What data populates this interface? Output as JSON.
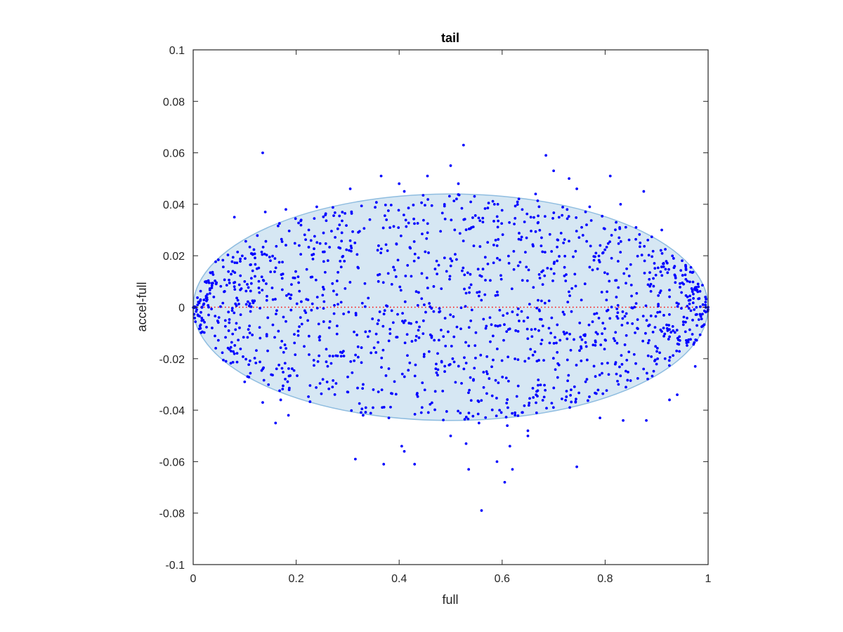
{
  "chart_data": {
    "type": "scatter",
    "title": "tail",
    "xlabel": "full",
    "ylabel": "accel-full",
    "xlim": [
      0,
      1
    ],
    "ylim": [
      -0.1,
      0.1
    ],
    "xticks": [
      {
        "value": 0,
        "label": "0"
      },
      {
        "value": 0.2,
        "label": "0.2"
      },
      {
        "value": 0.4,
        "label": "0.4"
      },
      {
        "value": 0.6,
        "label": "0.6"
      },
      {
        "value": 0.8,
        "label": "0.8"
      },
      {
        "value": 1,
        "label": "1"
      }
    ],
    "yticks": [
      {
        "value": -0.1,
        "label": "-0.1"
      },
      {
        "value": -0.08,
        "label": "-0.08"
      },
      {
        "value": -0.06,
        "label": "-0.06"
      },
      {
        "value": -0.04,
        "label": "-0.04"
      },
      {
        "value": -0.02,
        "label": "-0.02"
      },
      {
        "value": 0,
        "label": "0"
      },
      {
        "value": 0.02,
        "label": "0.02"
      },
      {
        "value": 0.04,
        "label": "0.04"
      },
      {
        "value": 0.06,
        "label": "0.06"
      },
      {
        "value": 0.08,
        "label": "0.08"
      },
      {
        "value": 0.1,
        "label": "0.1"
      }
    ],
    "grid": false,
    "envelope": {
      "shape": "ellipse",
      "x_center": 0.5,
      "x_halfwidth": 0.5,
      "y_halfheight": 0.044,
      "fill_color": "#d6e7f3",
      "edge_color": "#8fbde0"
    },
    "reference_line": {
      "y": 0,
      "style": "dotted",
      "color": "#ff0000"
    },
    "point_color": "#0000ff",
    "point_count_approx": 1500,
    "points": [
      [
        0.135,
        0.06
      ],
      [
        0.525,
        0.063
      ],
      [
        0.685,
        0.059
      ],
      [
        0.7,
        0.053
      ],
      [
        0.365,
        0.051
      ],
      [
        0.455,
        0.051
      ],
      [
        0.5,
        0.055
      ],
      [
        0.73,
        0.05
      ],
      [
        0.81,
        0.051
      ],
      [
        0.4,
        0.048
      ],
      [
        0.515,
        0.048
      ],
      [
        0.745,
        0.046
      ],
      [
        0.875,
        0.045
      ],
      [
        0.305,
        0.046
      ],
      [
        0.665,
        0.044
      ],
      [
        0.41,
        0.045
      ],
      [
        0.585,
        0.04
      ],
      [
        0.24,
        0.039
      ],
      [
        0.18,
        0.038
      ],
      [
        0.77,
        0.039
      ],
      [
        0.83,
        0.04
      ],
      [
        0.86,
        0.031
      ],
      [
        0.91,
        0.03
      ],
      [
        0.14,
        0.037
      ],
      [
        0.08,
        0.035
      ],
      [
        0.135,
        -0.037
      ],
      [
        0.16,
        -0.045
      ],
      [
        0.185,
        -0.042
      ],
      [
        0.17,
        -0.036
      ],
      [
        0.1,
        -0.029
      ],
      [
        0.925,
        -0.036
      ],
      [
        0.94,
        -0.034
      ],
      [
        0.88,
        -0.044
      ],
      [
        0.835,
        -0.044
      ],
      [
        0.79,
        -0.043
      ],
      [
        0.65,
        -0.048
      ],
      [
        0.61,
        -0.046
      ],
      [
        0.5,
        -0.05
      ],
      [
        0.53,
        -0.053
      ],
      [
        0.405,
        -0.054
      ],
      [
        0.41,
        -0.056
      ],
      [
        0.315,
        -0.059
      ],
      [
        0.37,
        -0.061
      ],
      [
        0.43,
        -0.061
      ],
      [
        0.535,
        -0.063
      ],
      [
        0.59,
        -0.06
      ],
      [
        0.605,
        -0.068
      ],
      [
        0.62,
        -0.063
      ],
      [
        0.615,
        -0.054
      ],
      [
        0.65,
        -0.05
      ],
      [
        0.745,
        -0.062
      ],
      [
        0.56,
        -0.079
      ],
      [
        0.595,
        -0.04
      ],
      [
        0.625,
        -0.041
      ],
      [
        0.555,
        -0.045
      ],
      [
        0.33,
        -0.042
      ],
      [
        0.38,
        -0.043
      ],
      [
        0.975,
        -0.023
      ],
      [
        0.99,
        0.001
      ],
      [
        1.0,
        0.0
      ],
      [
        0.005,
        0.0
      ],
      [
        0.01,
        0.002
      ],
      [
        0.015,
        -0.002
      ],
      [
        0.02,
        0.001
      ],
      [
        0.03,
        -0.003
      ],
      [
        0.04,
        0.004
      ],
      [
        0.05,
        -0.004
      ],
      [
        0.06,
        0.006
      ],
      [
        0.07,
        -0.006
      ],
      [
        0.08,
        0.008
      ],
      [
        0.09,
        -0.008
      ],
      [
        0.1,
        0.01
      ],
      [
        0.11,
        -0.01
      ],
      [
        0.12,
        0.012
      ],
      [
        0.13,
        -0.012
      ],
      [
        0.96,
        0.004
      ],
      [
        0.97,
        -0.005
      ],
      [
        0.98,
        0.006
      ],
      [
        0.985,
        -0.003
      ],
      [
        0.995,
        0.002
      ]
    ],
    "fill_points": {
      "count": 1400,
      "distribution": "uniform-within-envelope"
    }
  }
}
